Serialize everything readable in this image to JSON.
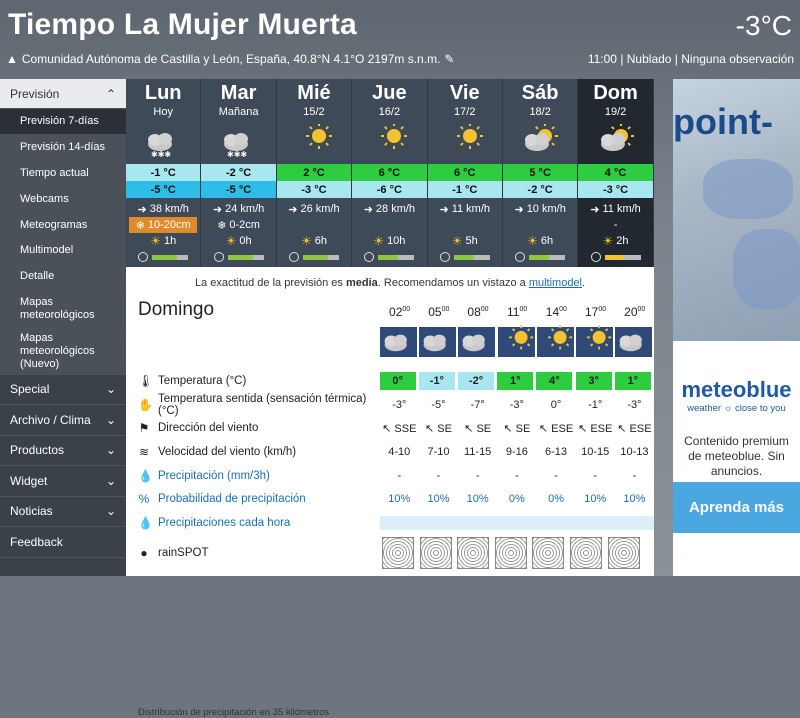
{
  "header": {
    "title": "Tiempo La Mujer Muerta",
    "current_temp": "-3°C",
    "location": "Comunidad Autónoma de Castilla y León, España, 40.8°N 4.1°O 2197m s.n.m.",
    "status": "11:00 | Nublado | Ninguna observación"
  },
  "sidebar": {
    "head": "Previsión",
    "subs": [
      "Previsión 7-días",
      "Previsión 14-días",
      "Tiempo actual",
      "Webcams",
      "Meteogramas",
      "Multimodel",
      "Detalle",
      "Mapas meteorológicos",
      "Mapas meteorológicos (Nuevo)"
    ],
    "mains": [
      "Special",
      "Archivo / Clima",
      "Productos",
      "Widget",
      "Noticias",
      "Feedback"
    ]
  },
  "days": [
    {
      "name": "Lun",
      "date": "Hoy",
      "max": "-1 °C",
      "min": "-5 °C",
      "wind": "38 km/h",
      "snow": "10-20cm",
      "sun": "1h",
      "pred": 0.7
    },
    {
      "name": "Mar",
      "date": "Mañana",
      "max": "-2 °C",
      "min": "-5 °C",
      "wind": "24 km/h",
      "snow": "0-2cm",
      "sun": "0h",
      "pred": 0.7
    },
    {
      "name": "Mié",
      "date": "15/2",
      "max": "2 °C",
      "min": "-3 °C",
      "wind": "26 km/h",
      "snow": "",
      "sun": "6h",
      "pred": 0.7
    },
    {
      "name": "Jue",
      "date": "16/2",
      "max": "6 °C",
      "min": "-6 °C",
      "wind": "28 km/h",
      "snow": "",
      "sun": "10h",
      "pred": 0.55
    },
    {
      "name": "Vie",
      "date": "17/2",
      "max": "6 °C",
      "min": "-1 °C",
      "wind": "11 km/h",
      "snow": "",
      "sun": "5h",
      "pred": 0.55
    },
    {
      "name": "Sáb",
      "date": "18/2",
      "max": "5 °C",
      "min": "-2 °C",
      "wind": "10 km/h",
      "snow": "",
      "sun": "6h",
      "pred": 0.55
    },
    {
      "name": "Dom",
      "date": "19/2",
      "max": "4 °C",
      "min": "-3 °C",
      "wind": "11 km/h",
      "snow": "-",
      "sun": "2h",
      "pred": 0.5
    }
  ],
  "accuracy": {
    "pre": "La exactitud de la previsión es ",
    "level": "media",
    "mid": ". Recomendamos un vistazo a ",
    "link": "multimodel",
    "post": "."
  },
  "hourly": {
    "day_title": "Domingo",
    "hours": [
      "02",
      "05",
      "08",
      "11",
      "14",
      "17",
      "20"
    ],
    "temperature": [
      "0°",
      "-1°",
      "-2°",
      "1°",
      "4°",
      "3°",
      "1°"
    ],
    "feels": [
      "-3°",
      "-5°",
      "-7°",
      "-3°",
      "0°",
      "-1°",
      "-3°"
    ],
    "wind_dir": [
      "SSE",
      "SE",
      "SE",
      "SE",
      "ESE",
      "ESE",
      "ESE"
    ],
    "wind_speed": [
      "4-10",
      "7-10",
      "11-15",
      "9-16",
      "6-13",
      "10-15",
      "10-13"
    ],
    "precip": [
      "-",
      "-",
      "-",
      "-",
      "-",
      "-",
      "-"
    ],
    "precip_prob": [
      "10%",
      "10%",
      "10%",
      "0%",
      "0%",
      "10%",
      "10%"
    ],
    "labels": {
      "temp": "Temperatura (°C)",
      "feels": "Temperatura sentida (sensación térmica) (°C)",
      "wind_dir": "Dirección del viento",
      "wind_speed": "Velocidad del viento (km/h)",
      "precip": "Precipitación (mm/3h)",
      "precip_prob": "Probabilidad de precipitación",
      "precip_hour": "Precipitaciones cada hora",
      "rainspot": "rainSPOT"
    },
    "footnote": "Distribución de precipitación en 35 kilómetros"
  },
  "ad": {
    "brand_top": "point-",
    "brand": "meteoblue",
    "tagline": "weather ☼ close to you",
    "text": "Contenido premium de meteoblue. Sin anuncios.",
    "button": "Aprenda más"
  },
  "colors": {
    "temp_green": "#2ecc40",
    "temp_light": "#a8e6f0",
    "temp_blue": "#2dbde6",
    "precip_blue": "#1b6fb5"
  }
}
